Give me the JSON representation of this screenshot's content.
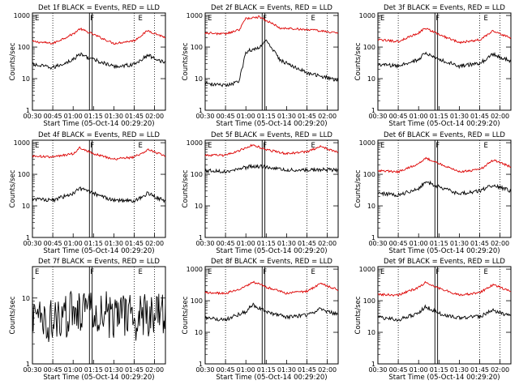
{
  "figure": {
    "ylabel": "Counts/sec",
    "xlabel": "Start Time (05-Oct-14 00:29:20)",
    "x_ticks": [
      "00:30",
      "00:45",
      "01:00",
      "01:15",
      "01:30",
      "01:45",
      "02:00"
    ],
    "y_ticks": [
      "1",
      "10",
      "100",
      "1000"
    ],
    "marker_labels": [
      "E",
      "F",
      "E"
    ],
    "colors": {
      "events": "#000000",
      "lld": "#dd0000"
    }
  },
  "chart_data": [
    {
      "type": "line",
      "title": "Det 1f BLACK = Events, RED = LLD",
      "xlabel": "Start Time (05-Oct-14 00:29:20)",
      "ylabel": "Counts/sec",
      "log_y": true,
      "ylim": [
        1,
        1200
      ],
      "xlim": [
        "00:30",
        "02:08"
      ],
      "x": [
        "00:30",
        "00:45",
        "01:00",
        "01:05",
        "01:15",
        "01:30",
        "01:45",
        "01:55",
        "02:08"
      ],
      "series": [
        {
          "name": "RED = LLD",
          "values": [
            150,
            130,
            260,
            380,
            250,
            130,
            160,
            330,
            200
          ]
        },
        {
          "name": "BLACK = Events",
          "values": [
            28,
            22,
            40,
            60,
            40,
            24,
            28,
            55,
            32
          ]
        }
      ]
    },
    {
      "type": "line",
      "title": "Det 2f BLACK = Events, RED = LLD",
      "xlabel": "Start Time (05-Oct-14 00:29:20)",
      "ylabel": "Counts/sec",
      "log_y": true,
      "ylim": [
        1,
        1200
      ],
      "xlim": [
        "00:30",
        "02:08"
      ],
      "x": [
        "00:30",
        "00:45",
        "00:55",
        "01:00",
        "01:10",
        "01:15",
        "01:25",
        "01:45",
        "02:08"
      ],
      "series": [
        {
          "name": "RED = LLD",
          "values": [
            280,
            260,
            350,
            800,
            900,
            700,
            400,
            360,
            280
          ]
        },
        {
          "name": "BLACK = Events",
          "values": [
            7,
            6,
            8,
            70,
            100,
            160,
            40,
            15,
            9
          ]
        }
      ]
    },
    {
      "type": "line",
      "title": "Det 3f BLACK = Events, RED = LLD",
      "xlabel": "Start Time (05-Oct-14 00:29:20)",
      "ylabel": "Counts/sec",
      "log_y": true,
      "ylim": [
        1,
        1200
      ],
      "xlim": [
        "00:30",
        "02:08"
      ],
      "x": [
        "00:30",
        "00:45",
        "01:00",
        "01:05",
        "01:15",
        "01:30",
        "01:45",
        "01:55",
        "02:08"
      ],
      "series": [
        {
          "name": "RED = LLD",
          "values": [
            170,
            150,
            280,
            400,
            250,
            140,
            170,
            330,
            190
          ]
        },
        {
          "name": "BLACK = Events",
          "values": [
            28,
            25,
            40,
            65,
            40,
            25,
            30,
            60,
            35
          ]
        }
      ]
    },
    {
      "type": "line",
      "title": "Det 4f BLACK = Events, RED = LLD",
      "xlabel": "Start Time (05-Oct-14 00:29:20)",
      "ylabel": "Counts/sec",
      "log_y": true,
      "ylim": [
        1,
        1200
      ],
      "xlim": [
        "00:30",
        "02:08"
      ],
      "x": [
        "00:30",
        "00:45",
        "01:00",
        "01:05",
        "01:15",
        "01:30",
        "01:45",
        "01:55",
        "02:08"
      ],
      "series": [
        {
          "name": "RED = LLD",
          "values": [
            380,
            350,
            450,
            700,
            450,
            300,
            350,
            600,
            380
          ]
        },
        {
          "name": "BLACK = Events",
          "values": [
            17,
            15,
            25,
            35,
            25,
            15,
            14,
            25,
            14
          ]
        }
      ]
    },
    {
      "type": "line",
      "title": "Det 5f BLACK = Events, RED = LLD",
      "xlabel": "Start Time (05-Oct-14 00:29:20)",
      "ylabel": "Counts/sec",
      "log_y": true,
      "ylim": [
        1,
        1200
      ],
      "xlim": [
        "00:30",
        "02:08"
      ],
      "x": [
        "00:30",
        "00:45",
        "00:55",
        "01:05",
        "01:15",
        "01:30",
        "01:45",
        "01:55",
        "02:08"
      ],
      "series": [
        {
          "name": "RED = LLD",
          "values": [
            400,
            400,
            560,
            850,
            600,
            450,
            520,
            750,
            500
          ]
        },
        {
          "name": "BLACK = Events",
          "values": [
            130,
            125,
            150,
            180,
            170,
            135,
            135,
            140,
            135
          ]
        }
      ]
    },
    {
      "type": "line",
      "title": "Det 6f BLACK = Events, RED = LLD",
      "xlabel": "Start Time (05-Oct-14 00:29:20)",
      "ylabel": "Counts/sec",
      "log_y": true,
      "ylim": [
        1,
        1200
      ],
      "xlim": [
        "00:30",
        "02:08"
      ],
      "x": [
        "00:30",
        "00:45",
        "01:00",
        "01:05",
        "01:15",
        "01:30",
        "01:45",
        "01:55",
        "02:08"
      ],
      "series": [
        {
          "name": "RED = LLD",
          "values": [
            130,
            120,
            220,
            330,
            220,
            120,
            140,
            280,
            170
          ]
        },
        {
          "name": "BLACK = Events",
          "values": [
            25,
            22,
            35,
            60,
            40,
            24,
            30,
            45,
            30
          ]
        }
      ]
    },
    {
      "type": "line",
      "title": "Det 7f BLACK = Events, RED = LLD",
      "xlabel": "Start Time (05-Oct-14 00:29:20)",
      "ylabel": "Counts/sec",
      "log_y": true,
      "ylim": [
        1,
        30
      ],
      "xlim": [
        "00:30",
        "02:08"
      ],
      "x": [
        "00:30",
        "00:45",
        "01:00",
        "01:10",
        "01:15",
        "01:30",
        "01:45",
        "02:00",
        "02:08"
      ],
      "series": [
        {
          "name": "BLACK = Events",
          "values": [
            5,
            4.5,
            6,
            8,
            7,
            5,
            5,
            5.5,
            5
          ]
        }
      ]
    },
    {
      "type": "line",
      "title": "Det 8f BLACK = Events, RED = LLD",
      "xlabel": "Start Time (05-Oct-14 00:29:20)",
      "ylabel": "Counts/sec",
      "log_y": true,
      "ylim": [
        1,
        1200
      ],
      "xlim": [
        "00:30",
        "02:08"
      ],
      "x": [
        "00:30",
        "00:45",
        "01:00",
        "01:05",
        "01:15",
        "01:30",
        "01:45",
        "01:55",
        "02:08"
      ],
      "series": [
        {
          "name": "RED = LLD",
          "values": [
            180,
            170,
            280,
            400,
            270,
            170,
            200,
            350,
            220
          ]
        },
        {
          "name": "BLACK = Events",
          "values": [
            28,
            25,
            45,
            75,
            45,
            30,
            35,
            55,
            35
          ]
        }
      ]
    },
    {
      "type": "line",
      "title": "Det 9f BLACK = Events, RED = LLD",
      "xlabel": "Start Time (05-Oct-14 00:29:20)",
      "ylabel": "Counts/sec",
      "log_y": true,
      "ylim": [
        1,
        1200
      ],
      "xlim": [
        "00:30",
        "02:08"
      ],
      "x": [
        "00:30",
        "00:45",
        "01:00",
        "01:05",
        "01:15",
        "01:30",
        "01:45",
        "01:55",
        "02:08"
      ],
      "series": [
        {
          "name": "RED = LLD",
          "values": [
            160,
            150,
            260,
            380,
            250,
            150,
            180,
            320,
            200
          ]
        },
        {
          "name": "BLACK = Events",
          "values": [
            30,
            25,
            40,
            65,
            40,
            28,
            32,
            50,
            32
          ]
        }
      ]
    }
  ]
}
